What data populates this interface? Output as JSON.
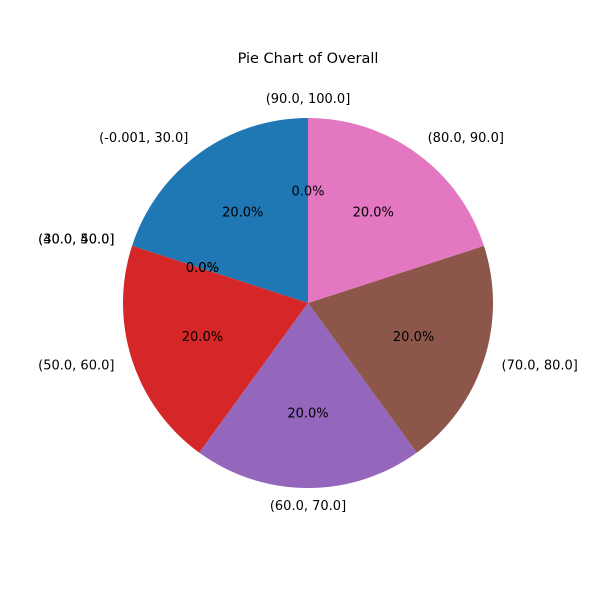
{
  "chart_data": {
    "type": "pie",
    "title": "Pie Chart of Overall",
    "start_angle_deg": 90,
    "counterclockwise": true,
    "slices": [
      {
        "label": "(-0.001, 30.0]",
        "value": 20.0,
        "pct_text": "20.0%",
        "color": "#1f77b4"
      },
      {
        "label": "(30.0, 40.0]",
        "value": 0.0,
        "pct_text": "0.0%",
        "color": "#ff7f0e"
      },
      {
        "label": "(40.0, 50.0]",
        "value": 0.0,
        "pct_text": "0.0%",
        "color": "#2ca02c"
      },
      {
        "label": "(50.0, 60.0]",
        "value": 20.0,
        "pct_text": "20.0%",
        "color": "#d62728"
      },
      {
        "label": "(60.0, 70.0]",
        "value": 20.0,
        "pct_text": "20.0%",
        "color": "#9467bd"
      },
      {
        "label": "(70.0, 80.0]",
        "value": 20.0,
        "pct_text": "20.0%",
        "color": "#8c564b"
      },
      {
        "label": "(80.0, 90.0]",
        "value": 20.0,
        "pct_text": "20.0%",
        "color": "#e377c2"
      },
      {
        "label": "(90.0, 100.0]",
        "value": 0.0,
        "pct_text": "0.0%",
        "color": "#7f7f7f"
      }
    ]
  }
}
